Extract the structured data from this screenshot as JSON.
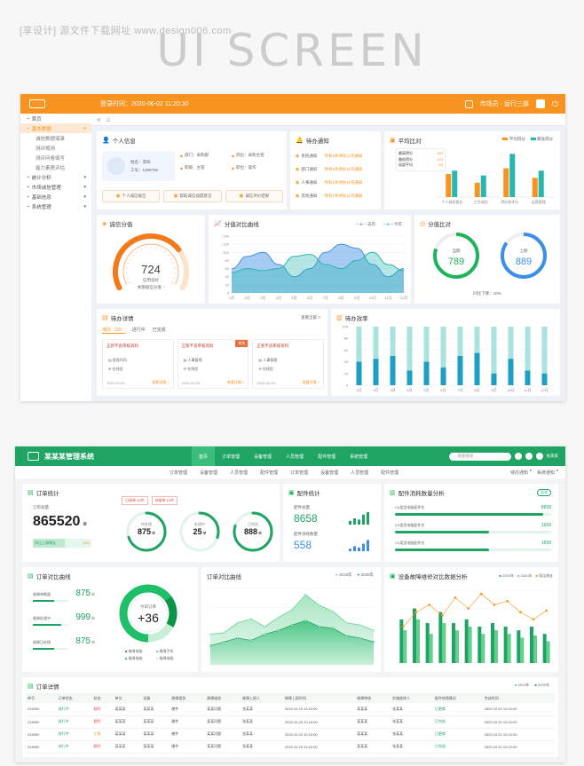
{
  "watermark_top": "[享设计] 源文件下载网址 www.design006.com",
  "hero_text": "UI SCREEN",
  "d1": {
    "colors": {
      "accent": "#f7931e",
      "teal": "#27b6b0",
      "blue": "#3b8fe6"
    },
    "topbar": {
      "time": "登录时间：2020-06-02 11:20:30",
      "user": "市场员 - 运行三部"
    },
    "sidebar": [
      {
        "label": "首页",
        "active": false
      },
      {
        "label": "基本数据",
        "active": true
      },
      {
        "label": "诚信数据填录",
        "sub": true
      },
      {
        "label": "测评规则",
        "sub": true
      },
      {
        "label": "测评问卷填写",
        "sub": true
      },
      {
        "label": "能力素质评估",
        "sub": true
      },
      {
        "label": "统计分析"
      },
      {
        "label": "市场诚信管理"
      },
      {
        "label": "基础信息"
      },
      {
        "label": "系统管理"
      }
    ],
    "profile": {
      "title": "个人信息",
      "name": "姓名：李四",
      "id": "工号：1256765",
      "fields": [
        "部门：采购部",
        "岗位：采购主管",
        "职级：主管",
        "职位：操作"
      ],
      "actions": [
        "个人诚信报告",
        "帮助诚信加盟意见",
        "诚信评价结果"
      ]
    },
    "todo": {
      "title": "待办通知",
      "items": [
        {
          "label": "系统通知",
          "text": "你有1条待办公司通知"
        },
        {
          "label": "部门通知",
          "text": "你有1条待办公司通知"
        },
        {
          "label": "人事通知",
          "text": "你有1条待办公司通知"
        },
        {
          "label": "其他通知",
          "text": "你有1条待办公司通知"
        }
      ]
    },
    "avg": {
      "title": "平均比对",
      "legend": [
        "平均得分",
        "最低得分"
      ],
      "stats": [
        {
          "label": "最高得分",
          "value": "360"
        },
        {
          "label": "最低得分",
          "value": "120"
        },
        {
          "label": "局部平均",
          "value": "65"
        }
      ]
    },
    "avg_chart": {
      "type": "bar",
      "categories": [
        "个人诚信报告",
        "工作诚信",
        "供应商评分",
        "运营管理"
      ],
      "series": [
        {
          "name": "平均得分",
          "values": [
            48,
            30,
            60,
            40
          ]
        },
        {
          "name": "最低得分",
          "values": [
            55,
            45,
            90,
            55
          ]
        }
      ],
      "ylim": [
        0,
        100
      ]
    },
    "gauge": {
      "title": "诚信分值",
      "value": "724",
      "label1": "信用良好",
      "label2": "本期诚信分值 ↑",
      "fraction": 0.72
    },
    "trend": {
      "title": "分值对比曲线",
      "legend": [
        "去年",
        "今年"
      ],
      "yticks": [
        "140",
        "120",
        "100",
        "80",
        "60",
        "40",
        "20",
        "0"
      ],
      "months": [
        "1月",
        "2月",
        "3月",
        "4月",
        "5月",
        "6月",
        "7月",
        "8月",
        "9月",
        "10月",
        "11月",
        "12月"
      ],
      "series": [
        {
          "name": "去年",
          "values": [
            60,
            90,
            100,
            70,
            40,
            60,
            100,
            120,
            110,
            70,
            40,
            60
          ]
        },
        {
          "name": "今年",
          "values": [
            50,
            60,
            55,
            60,
            90,
            95,
            70,
            60,
            80,
            100,
            70,
            55
          ]
        }
      ]
    },
    "compare": {
      "title": "分值比对",
      "cur_label": "当期",
      "cur": "789",
      "prev_label": "上期",
      "prev": "889",
      "diff": "同比下降：10%"
    },
    "tasks": {
      "title": "待办详情",
      "more": "查看全部 >",
      "tabs": [
        "待办（20）",
        "进行中",
        "已完成"
      ],
      "cards": [
        {
          "title": "正新不良审核资料",
          "a": "医保问问",
          "b": "在线信",
          "date": "2020-02-03",
          "link": "查看详情 >",
          "badge": ""
        },
        {
          "title": "正新不良审核资料",
          "a": "人事管理",
          "b": "在线信",
          "date": "2020-02-03",
          "link": "查看详情 >",
          "badge": "紧急"
        },
        {
          "title": "正新不良审核资料",
          "a": "人事管理",
          "b": "在线信",
          "date": "2020-02-03",
          "link": "查看详情 >",
          "badge": ""
        }
      ]
    },
    "efficiency": {
      "title": "待办效率",
      "chart_data": {
        "type": "bar",
        "categories": [
          "1月",
          "2月",
          "3月",
          "4月",
          "5月",
          "6月",
          "7月",
          "8月",
          "9月",
          "10月",
          "11月",
          "12月"
        ],
        "series": [
          {
            "name": "total",
            "values": [
              100,
              100,
              100,
              100,
              100,
              100,
              100,
              100,
              100,
              100,
              100,
              100
            ]
          },
          {
            "name": "done",
            "values": [
              40,
              45,
              50,
              25,
              40,
              30,
              50,
              55,
              20,
              45,
              25,
              20
            ]
          }
        ],
        "yticks": [
          "100",
          "80",
          "60",
          "40",
          "20",
          "0"
        ],
        "ylim": [
          0,
          100
        ]
      }
    }
  },
  "d2": {
    "colors": {
      "accent": "#1fa463",
      "light": "#63d08e"
    },
    "title": "某某某管理系统",
    "nav": [
      "首页",
      "订单管理",
      "设备管理",
      "人员管理",
      "配件管理",
      "系统管理"
    ],
    "search_placeholder": "快速搜索",
    "user": "张某某",
    "subnav": [
      "订单管理",
      "设备管理",
      "人员管理",
      "配件管理",
      "订单管理",
      "设备管理",
      "人员管理",
      "配件管理"
    ],
    "subnav_right": [
      "待办通知",
      "系统通知"
    ],
    "order_stats": {
      "title": "订单统计",
      "total_label": "订单总量",
      "total": "865520",
      "unit": "单",
      "growth_label": "同比上周增长",
      "growth": "23%",
      "growth_fraction": 0.55,
      "tags": [
        "已接单 12件",
        "待接单 10件"
      ],
      "rings": [
        {
          "label": "待处理",
          "value": "875",
          "unit": "单",
          "fraction": 0.7
        },
        {
          "label": "处理中",
          "value": "25",
          "unit": "单",
          "fraction": 0.3
        },
        {
          "label": "已完成",
          "value": "888",
          "unit": "单",
          "fraction": 0.8
        }
      ]
    },
    "parts": {
      "title": "配件统计",
      "a_label": "配件总量",
      "a": "8658",
      "b_label": "配件消耗数量",
      "b": "558",
      "mini_a": [
        3,
        5,
        4,
        8,
        10
      ],
      "mini_b": [
        2,
        4,
        3,
        6,
        9
      ]
    },
    "consume": {
      "title": "配件消耗数量分析",
      "tag": "全年",
      "rows": [
        {
          "label": "XX类型电脑配件名",
          "value": "8658",
          "fraction": 0.95
        },
        {
          "label": "XX类型电脑配件名",
          "value": "1658",
          "fraction": 0.6
        },
        {
          "label": "XX类型电脑配件名",
          "value": "1658",
          "fraction": 0.6
        }
      ]
    },
    "order_curve_left": {
      "title": "订单对比曲线",
      "rows": [
        {
          "label": "故障单数量",
          "value": "875",
          "unit": "单",
          "fraction": 0.6
        },
        {
          "label": "故障处理中",
          "value": "999",
          "unit": "单",
          "fraction": 0.8
        },
        {
          "label": "故障已处理",
          "value": "875",
          "unit": "单",
          "fraction": 0.6
        }
      ],
      "donut_label": "今日订单",
      "donut_value": "+36",
      "legend": [
        "故障电脑",
        "故障手机",
        "故障电脑",
        "故障电脑"
      ],
      "donut_fraction": 0.65
    },
    "order_curve": {
      "title": "订单对比曲线",
      "legend": [
        "2019年",
        "2020年"
      ],
      "series": [
        {
          "name": "2019年",
          "values": [
            40,
            42,
            55,
            60,
            50,
            62,
            72,
            92,
            78,
            70,
            55,
            52,
            45
          ]
        },
        {
          "name": "2020年",
          "values": [
            25,
            30,
            35,
            32,
            40,
            45,
            52,
            58,
            50,
            48,
            38,
            35,
            30
          ]
        }
      ]
    },
    "fault": {
      "title": "设备故障维修对比数据分析",
      "legend": [
        "2019年",
        "2020年",
        "同比增长"
      ],
      "chart_data": {
        "type": "bar",
        "series": [
          {
            "name": "2019年",
            "values": [
              60,
              75,
              55,
              70,
              55,
              60,
              50,
              55,
              50,
              45,
              50,
              40
            ]
          },
          {
            "name": "2020年",
            "values": [
              45,
              60,
              40,
              55,
              45,
              50,
              40,
              45,
              40,
              35,
              38,
              30
            ]
          },
          {
            "name": "同比增长",
            "values": [
              50,
              70,
              80,
              65,
              90,
              75,
              95,
              80,
              85,
              70,
              60,
              72
            ]
          }
        ],
        "ylim": [
          0,
          100
        ]
      }
    },
    "details": {
      "title": "订单详情",
      "legend": [
        "2019年",
        "2020年"
      ],
      "columns": [
        "单号",
        "订单状态",
        "状态",
        "单位",
        "设备",
        "故障类别",
        "故障描述",
        "故障上报人",
        "故障上报时间",
        "故障审核",
        "实施维修人",
        "配件修理情况",
        "完成时间"
      ],
      "rows": [
        [
          "234900",
          "进行中",
          "超时",
          "某某某",
          "某某某",
          "硬件",
          "某某问题",
          "张某某",
          "2020.10.20 10:15:00",
          "某某某",
          "张某某",
          "已更换",
          "2020.10.20 10:15:00"
        ],
        [
          "234900",
          "进行中",
          "超时",
          "某某某",
          "某某某",
          "硬件",
          "某某问题",
          "张某某",
          "2020.10.20 10:15:00",
          "某某某",
          "张某某",
          "已完成",
          "2020.10.20 10:15:00"
        ],
        [
          "234900",
          "进行中",
          "正常",
          "某某某",
          "某某某",
          "硬件",
          "某某问题",
          "张某某",
          "2020.10.20 10:15:00",
          "某某某",
          "张某某",
          "已更换",
          "2020.10.20 10:15:00"
        ],
        [
          "234900",
          "进行中",
          "超时",
          "某某某",
          "某某某",
          "硬件",
          "某某问题",
          "张某某",
          "2020.10.20 10:15:00",
          "某某某",
          "张某某",
          "已完成",
          "2020.10.20 10:15:00"
        ]
      ]
    }
  }
}
